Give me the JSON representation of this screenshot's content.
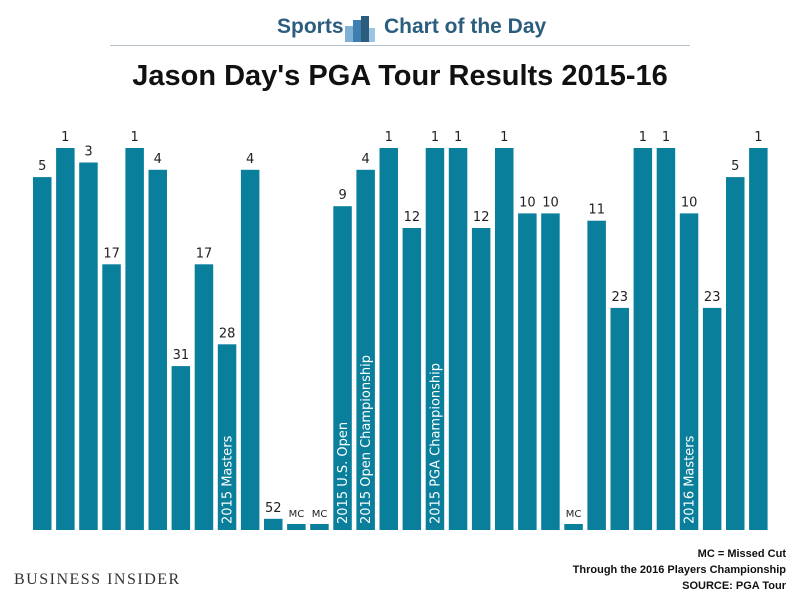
{
  "header": {
    "section": "Sports",
    "feature": "Chart of the Day"
  },
  "brand": "BUSINESS INSIDER",
  "footnotes": {
    "legend": "MC = Missed Cut",
    "note": "Through the 2016 Players Championship",
    "source": "SOURCE: PGA Tour"
  },
  "colors": {
    "bar": "#0a7f9c",
    "text": "#111111",
    "accent": "#2b5e7e"
  },
  "chart_data": {
    "type": "bar",
    "title": "Jason Day's PGA Tour Results 2015-16",
    "xlabel": "",
    "ylabel": "",
    "y_inverted": true,
    "y_note": "Bar height shows finishing position; better finish = taller bar",
    "values": [
      5,
      1,
      3,
      17,
      1,
      4,
      31,
      17,
      28,
      4,
      52,
      "MC",
      "MC",
      9,
      4,
      1,
      12,
      1,
      1,
      12,
      1,
      10,
      10,
      "MC",
      11,
      23,
      1,
      1,
      10,
      23,
      5,
      1
    ],
    "labels": [
      "5",
      "1",
      "3",
      "17",
      "1",
      "4",
      "31",
      "17",
      "28",
      "4",
      "52",
      "MC",
      "MC",
      "9",
      "4",
      "1",
      "12",
      "1",
      "1",
      "12",
      "1",
      "10",
      "10",
      "MC",
      "11",
      "23",
      "1",
      "1",
      "10",
      "23",
      "5",
      "1"
    ],
    "annotations": [
      {
        "index": 8,
        "text": "2015 Masters"
      },
      {
        "index": 13,
        "text": "2015 U.S. Open"
      },
      {
        "index": 14,
        "text": "2015 Open Championship"
      },
      {
        "index": 17,
        "text": "2015 PGA Championship"
      },
      {
        "index": 28,
        "text": "2016 Masters"
      }
    ],
    "grid": false,
    "legend": "none"
  }
}
